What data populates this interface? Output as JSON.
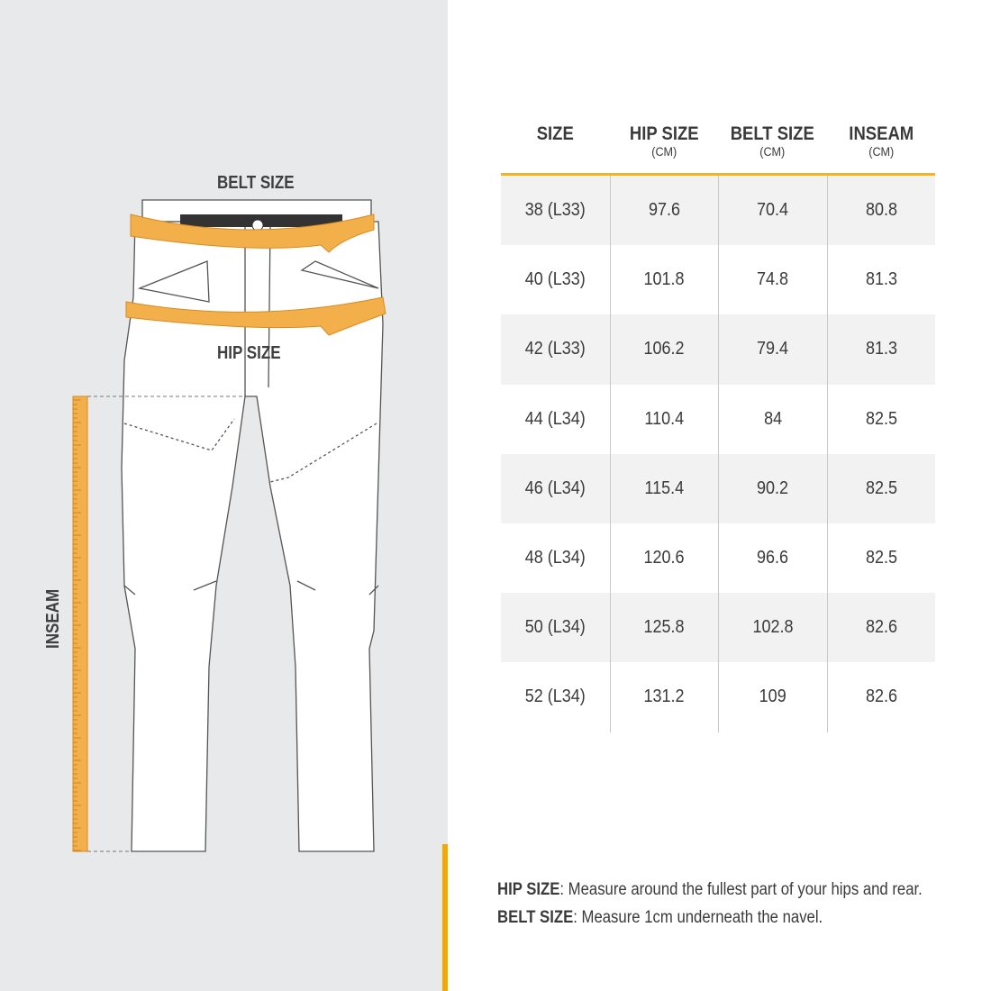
{
  "illustration": {
    "belt_label": "BELT SIZE",
    "hip_label": "HIP SIZE",
    "inseam_label": "INSEAM"
  },
  "colors": {
    "accent": "#f5a800",
    "tape": "#f3b04a",
    "panel": "#e8e9ea"
  },
  "table": {
    "headers": [
      {
        "title": "SIZE",
        "unit": ""
      },
      {
        "title": "HIP SIZE",
        "unit": "(CM)"
      },
      {
        "title": "BELT SIZE",
        "unit": "(CM)"
      },
      {
        "title": "INSEAM",
        "unit": "(CM)"
      }
    ],
    "rows": [
      [
        "38 (L33)",
        "97.6",
        "70.4",
        "80.8"
      ],
      [
        "40 (L33)",
        "101.8",
        "74.8",
        "81.3"
      ],
      [
        "42 (L33)",
        "106.2",
        "79.4",
        "81.3"
      ],
      [
        "44 (L34)",
        "110.4",
        "84",
        "82.5"
      ],
      [
        "46 (L34)",
        "115.4",
        "90.2",
        "82.5"
      ],
      [
        "48 (L34)",
        "120.6",
        "96.6",
        "82.5"
      ],
      [
        "50 (L34)",
        "125.8",
        "102.8",
        "82.6"
      ],
      [
        "52 (L34)",
        "131.2",
        "109",
        "82.6"
      ]
    ]
  },
  "notes": [
    {
      "term": "HIP SIZE",
      "text": ": Measure around the fullest part of your hips and rear."
    },
    {
      "term": "BELT SIZE",
      "text": ": Measure 1cm underneath the navel."
    }
  ]
}
